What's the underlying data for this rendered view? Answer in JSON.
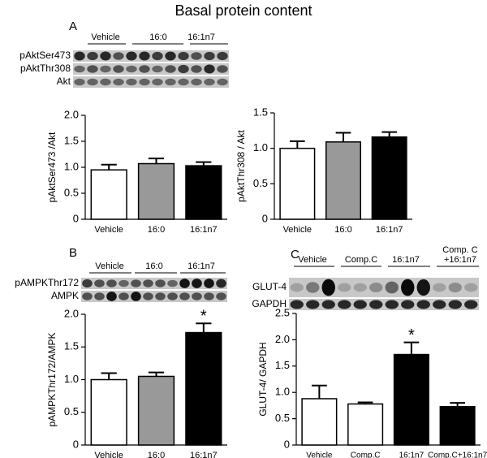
{
  "title": "Basal protein content",
  "panel_labels": [
    "A",
    "B",
    "C"
  ],
  "blots": [
    {
      "groups": [
        [
          "Vehicle"
        ],
        [
          "16:0"
        ],
        [
          "16:1n7"
        ]
      ],
      "rows": [
        "pAktSer473",
        "pAktThr308",
        "Akt"
      ]
    },
    {
      "groups": [
        [
          "Vehicle"
        ],
        [
          "16:0"
        ],
        [
          "16:1n7"
        ]
      ],
      "rows": [
        "pAMPKThr172",
        "AMPK"
      ]
    },
    {
      "groups": [
        [
          "Vehicle"
        ],
        [
          "Comp.C"
        ],
        [
          "16:1n7"
        ],
        [
          "Comp. C",
          "+16:1n7"
        ]
      ],
      "rows": [
        "GLUT-4",
        "GAPDH"
      ]
    }
  ],
  "chart_data": [
    {
      "type": "bar",
      "y_label": "pAktSer473 /Akt",
      "categories": [
        "Vehicle",
        "16:0",
        "16:1n7"
      ],
      "values": [
        0.95,
        1.07,
        1.03
      ],
      "errors": [
        0.1,
        0.1,
        0.07
      ],
      "colors": [
        "#ffffff",
        "#999999",
        "#000000"
      ],
      "ylim": [
        0,
        2
      ],
      "yticks": [
        0,
        0.5,
        {
          "value": 1,
          "label": "1.0"
        },
        1.5,
        {
          "value": 2,
          "label": "2.0"
        }
      ]
    },
    {
      "type": "bar",
      "y_label": "pAktThr308 / Akt",
      "categories": [
        "Vehicle",
        "16:0",
        "16:1n7"
      ],
      "values": [
        1.0,
        1.09,
        1.16
      ],
      "errors": [
        0.1,
        0.13,
        0.07
      ],
      "colors": [
        "#ffffff",
        "#999999",
        "#000000"
      ],
      "ylim": [
        0,
        1.5
      ],
      "yticks": [
        0,
        0.5,
        {
          "value": 1,
          "label": "1.0"
        },
        1.5
      ]
    },
    {
      "type": "bar",
      "y_label": "pAMPKThr172/AMPK",
      "categories": [
        "Vehicle",
        "16:0",
        "16:1n7"
      ],
      "values": [
        1.0,
        1.05,
        1.72
      ],
      "errors": [
        0.1,
        0.06,
        0.14
      ],
      "colors": [
        "#ffffff",
        "#999999",
        "#000000"
      ],
      "value_annotations": [
        null,
        null,
        "*"
      ],
      "ylim": [
        0,
        2
      ],
      "yticks": [
        0,
        0.5,
        {
          "value": 1,
          "label": "1.0"
        },
        1.5,
        {
          "value": 2,
          "label": "2.0"
        }
      ]
    },
    {
      "type": "bar",
      "y_label": "GLUT-4/ GAPDH",
      "categories": [
        "Vehicle",
        "Comp.C",
        "16:1n7",
        "Comp.C+16:1n7"
      ],
      "values": [
        0.88,
        0.78,
        1.72,
        0.73
      ],
      "errors": [
        0.25,
        0.03,
        0.23,
        0.07
      ],
      "colors": [
        "#ffffff",
        "#ffffff",
        "#000000",
        "#000000"
      ],
      "value_annotations": [
        null,
        null,
        "*",
        null
      ],
      "ylim": [
        0,
        2.5
      ],
      "yticks": [
        0,
        0.5,
        {
          "value": 1,
          "label": "1.0"
        },
        1.5,
        {
          "value": 2,
          "label": "2.0"
        },
        2.5
      ]
    }
  ]
}
